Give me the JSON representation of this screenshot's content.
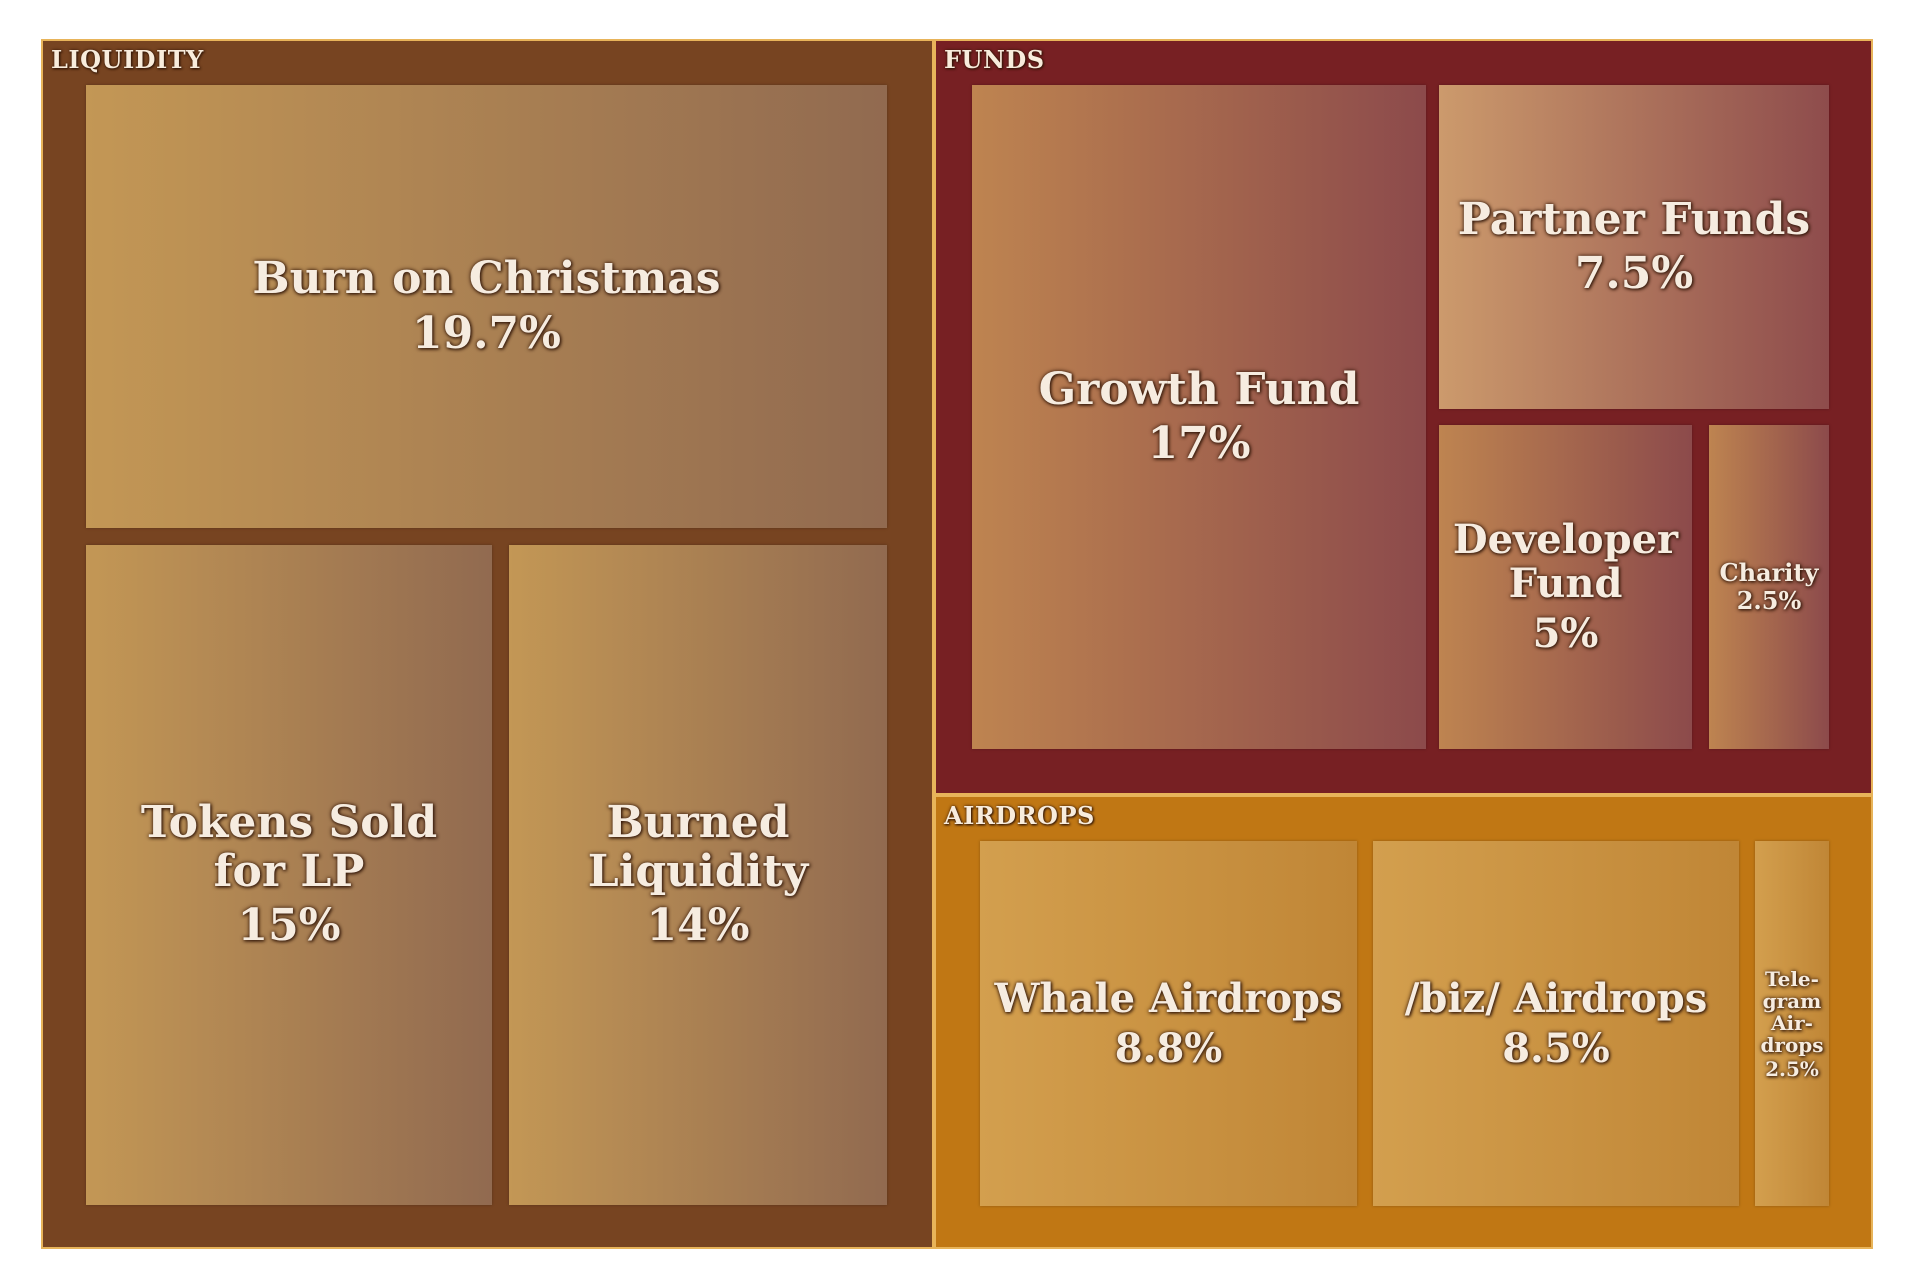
{
  "chart_data": {
    "type": "treemap",
    "groups": [
      {
        "name": "LIQUIDITY",
        "color": "#774421",
        "items": [
          {
            "label": "Burn on Christmas",
            "value_label": "19.7%",
            "value": 19.7,
            "gradient": [
              "#c39755",
              "#916a50"
            ]
          },
          {
            "label": "Tokens Sold\nfor LP",
            "value_label": "15%",
            "value": 15,
            "gradient": [
              "#c39755",
              "#916a50"
            ]
          },
          {
            "label": "Burned\nLiquidity",
            "value_label": "14%",
            "value": 14,
            "gradient": [
              "#c39755",
              "#916a50"
            ]
          }
        ]
      },
      {
        "name": "FUNDS",
        "color": "#772023",
        "items": [
          {
            "label": "Growth Fund",
            "value_label": "17%",
            "value": 17,
            "gradient": [
              "#be8450",
              "#8c4a4b"
            ]
          },
          {
            "label": "Partner Funds",
            "value_label": "7.5%",
            "value": 7.5,
            "gradient": [
              "#cc9a6c",
              "#8e4c4c"
            ]
          },
          {
            "label": "Developer\nFund",
            "value_label": "5%",
            "value": 5,
            "gradient": [
              "#be8450",
              "#8c4a4b"
            ]
          },
          {
            "label": "Charity",
            "value_label": "2.5%",
            "value": 2.5,
            "gradient": [
              "#be8450",
              "#8c4a4b"
            ]
          }
        ]
      },
      {
        "name": "AIRDROPS",
        "color": "#c07714",
        "items": [
          {
            "label": "Whale Airdrops",
            "value_label": "8.8%",
            "value": 8.8,
            "gradient": [
              "#d39f4e",
              "#c08636"
            ]
          },
          {
            "label": "/biz/ Airdrops",
            "value_label": "8.5%",
            "value": 8.5,
            "gradient": [
              "#d39f4e",
              "#c08636"
            ]
          },
          {
            "label": "Tele-\ngram\nAir-\ndrops",
            "value_label": "2.5%",
            "value": 2.5,
            "gradient": [
              "#d39f4e",
              "#c08636"
            ]
          }
        ]
      }
    ]
  }
}
